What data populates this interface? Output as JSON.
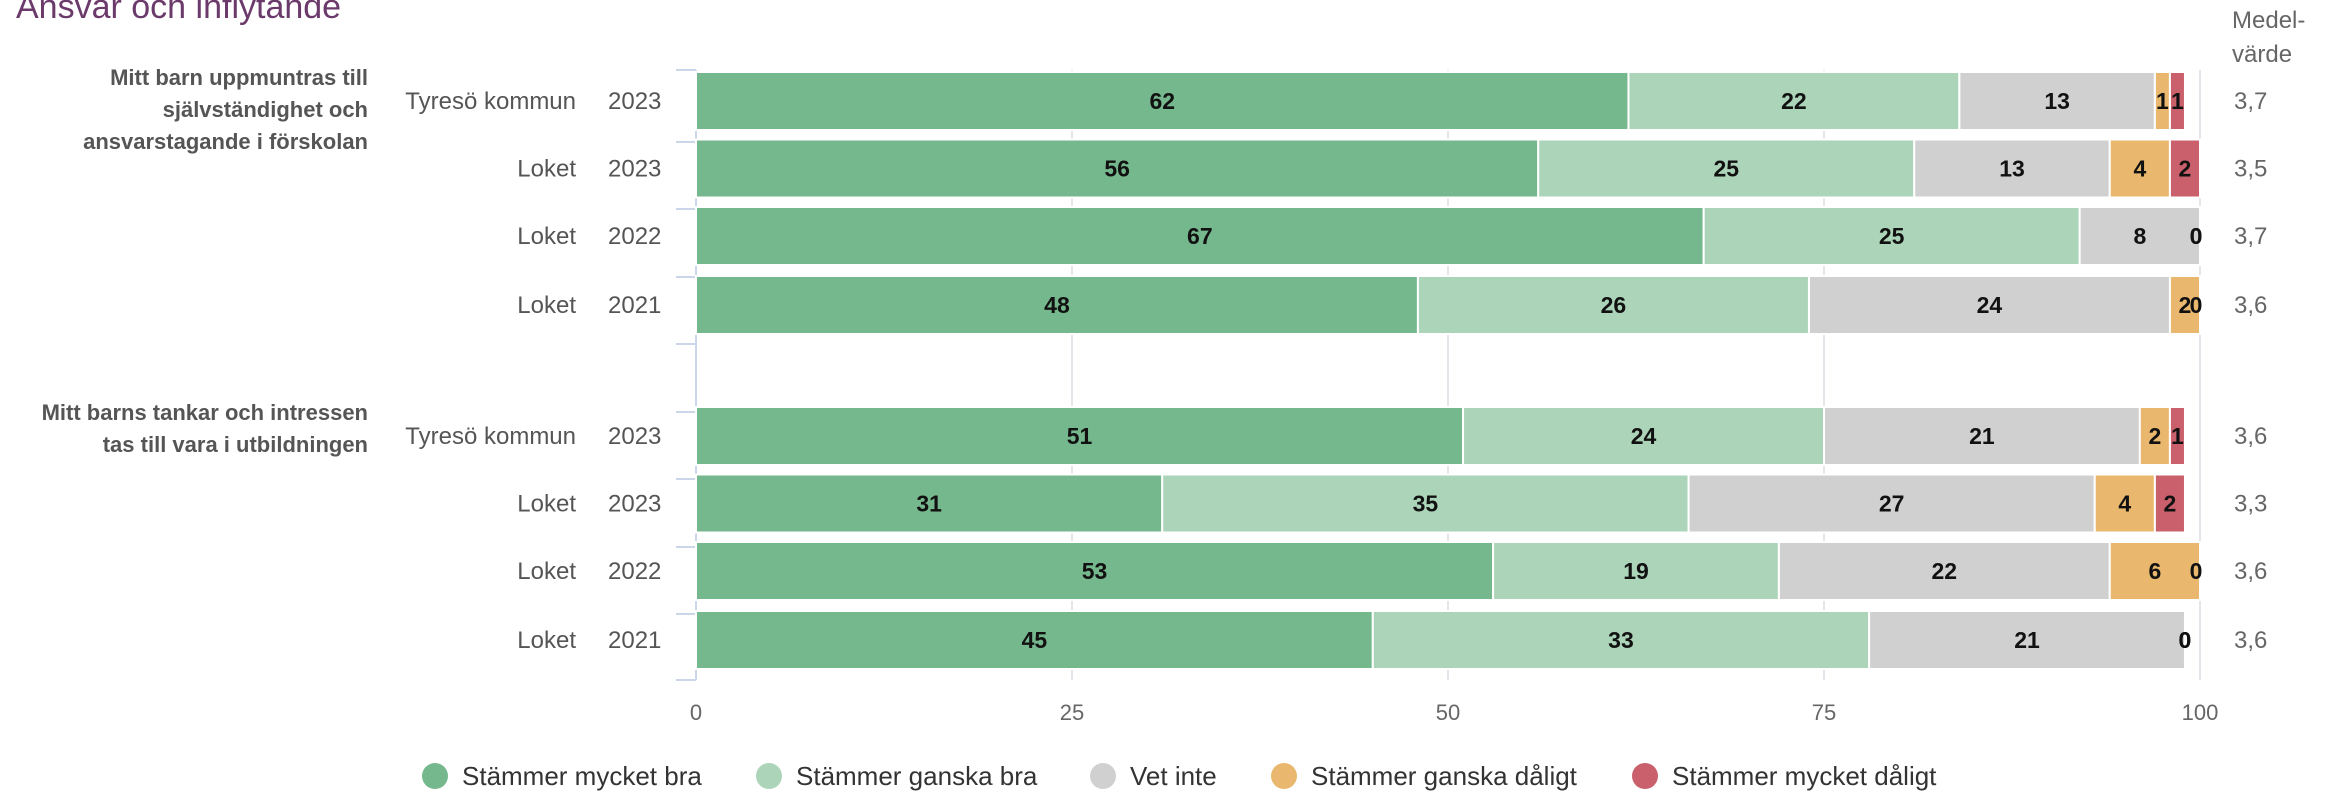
{
  "title": "Ansvar och inflytande",
  "mean_header": [
    "Medel-",
    "värde"
  ],
  "colors": {
    "stammer_mycket_bra": "#76b88e",
    "stammer_ganska_bra": "#abd4b9",
    "vet_inte": "#d0d0d0",
    "stammer_ganska_daligt": "#e9b86e",
    "stammer_mycket_daligt": "#c9606b"
  },
  "chart_data": {
    "type": "bar",
    "orientation": "horizontal",
    "stacked": true,
    "xlim": [
      0,
      100
    ],
    "x_ticks": [
      "0",
      "25",
      "50",
      "75",
      "100"
    ],
    "series_names": [
      "Stämmer mycket bra",
      "Stämmer ganska bra",
      "Vet inte",
      "Stämmer ganska dåligt",
      "Stämmer mycket dåligt"
    ],
    "groups": [
      {
        "question": [
          "Mitt barn uppmuntras till",
          "självständighet och",
          "ansvarstagande i förskolan"
        ],
        "rows": [
          {
            "unit": "Tyresö kommun",
            "year": "2023",
            "values": [
              62,
              22,
              13,
              1,
              1
            ],
            "mean": "3,7"
          },
          {
            "unit": "Loket",
            "year": "2023",
            "values": [
              56,
              25,
              13,
              4,
              2
            ],
            "mean": "3,5"
          },
          {
            "unit": "Loket",
            "year": "2022",
            "values": [
              67,
              25,
              8,
              0,
              0
            ],
            "mean": "3,7"
          },
          {
            "unit": "Loket",
            "year": "2021",
            "values": [
              48,
              26,
              24,
              2,
              0
            ],
            "mean": "3,6"
          }
        ]
      },
      {
        "question": [
          "Mitt barns tankar och intressen",
          "tas till vara i utbildningen"
        ],
        "rows": [
          {
            "unit": "Tyresö kommun",
            "year": "2023",
            "values": [
              51,
              24,
              21,
              2,
              1
            ],
            "mean": "3,6"
          },
          {
            "unit": "Loket",
            "year": "2023",
            "values": [
              31,
              35,
              27,
              4,
              2
            ],
            "mean": "3,3"
          },
          {
            "unit": "Loket",
            "year": "2022",
            "values": [
              53,
              19,
              22,
              6,
              0
            ],
            "mean": "3,6"
          },
          {
            "unit": "Loket",
            "year": "2021",
            "values": [
              45,
              33,
              21,
              0,
              0
            ],
            "mean": "3,6"
          }
        ]
      }
    ]
  }
}
